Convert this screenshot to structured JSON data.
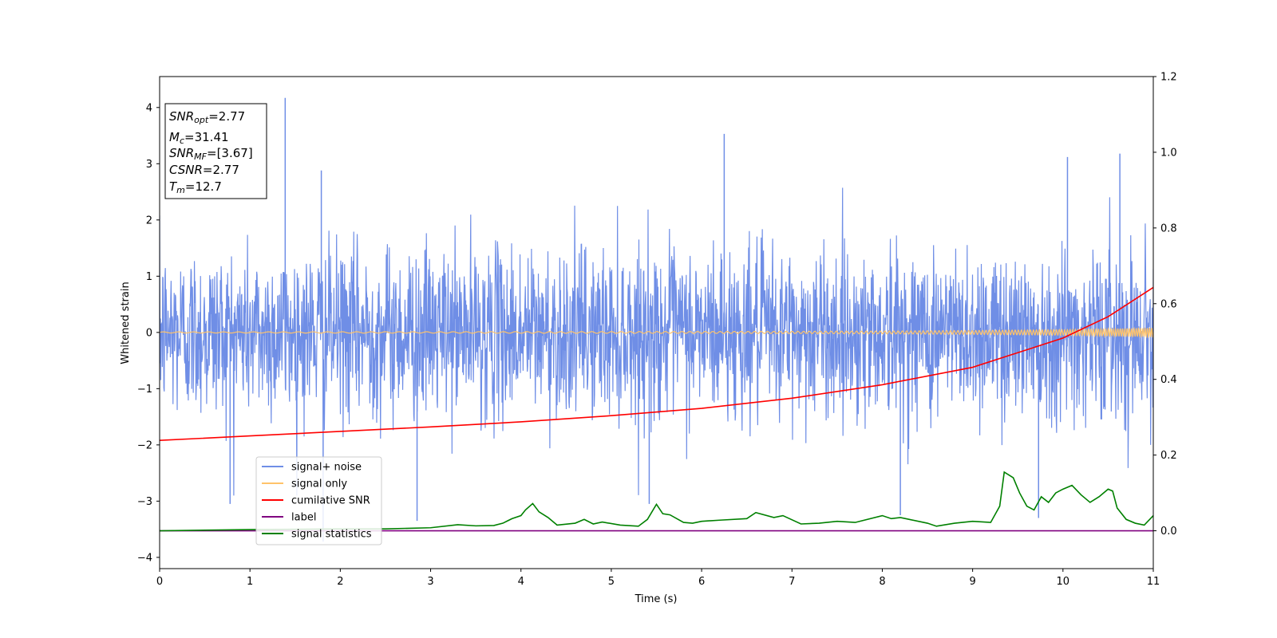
{
  "chart_data": {
    "type": "line",
    "xlabel": "Time (s)",
    "ylabel": "Whitened strain",
    "xlim": [
      0,
      11
    ],
    "ylim": [
      -4.2,
      4.55
    ],
    "y2lim": [
      -0.1,
      1.2
    ],
    "x_ticks": [
      0,
      1,
      2,
      3,
      4,
      5,
      6,
      7,
      8,
      9,
      10,
      11
    ],
    "y_ticks": [
      -4,
      -3,
      -2,
      -1,
      0,
      1,
      2,
      3,
      4
    ],
    "y_tick_labels": [
      "−4",
      "−3",
      "−2",
      "−1",
      "0",
      "1",
      "2",
      "3",
      "4"
    ],
    "y2_ticks": [
      0.0,
      0.2,
      0.4,
      0.6,
      0.8,
      1.0,
      1.2
    ],
    "y2_tick_labels": [
      "0.0",
      "0.2",
      "0.4",
      "0.6",
      "0.8",
      "1.0",
      "1.2"
    ],
    "legend_position": "lower-left",
    "series": [
      {
        "name": "signal+ noise",
        "axis": "left",
        "color": "#6f8ee6",
        "style": "dense-noise",
        "std": 0.75,
        "peaks": [
          {
            "x": 1.39,
            "y": 4.17
          },
          {
            "x": 6.25,
            "y": 3.53
          },
          {
            "x": 10.63,
            "y": 3.18
          },
          {
            "x": 1.79,
            "y": 2.88
          },
          {
            "x": 10.05,
            "y": 3.12
          },
          {
            "x": 2.85,
            "y": -3.35
          },
          {
            "x": 1.81,
            "y": -3.72
          },
          {
            "x": 9.73,
            "y": -3.3
          },
          {
            "x": 0.78,
            "y": -3.05
          },
          {
            "x": 8.2,
            "y": -3.25
          },
          {
            "x": 5.42,
            "y": -3.05
          }
        ]
      },
      {
        "name": "signal only",
        "axis": "left",
        "color": "#ffc36a",
        "style": "chirp",
        "x": [
          0,
          1,
          2,
          3,
          4,
          5,
          6,
          7,
          8,
          9,
          10,
          11
        ],
        "amplitude": [
          0.01,
          0.01,
          0.012,
          0.012,
          0.014,
          0.015,
          0.017,
          0.02,
          0.025,
          0.035,
          0.05,
          0.08
        ]
      },
      {
        "name": "cumilative SNR",
        "axis": "left",
        "color": "#ff0000",
        "x": [
          0,
          1,
          2,
          3,
          4,
          5,
          6,
          7,
          8,
          9,
          10,
          10.5,
          11
        ],
        "y": [
          -1.92,
          -1.84,
          -1.76,
          -1.68,
          -1.59,
          -1.48,
          -1.35,
          -1.17,
          -0.93,
          -0.62,
          -0.1,
          0.28,
          0.8
        ]
      },
      {
        "name": "label",
        "axis": "right",
        "color": "#800080",
        "x": [
          0,
          11
        ],
        "y": [
          0,
          0
        ]
      },
      {
        "name": "signal statistics",
        "axis": "right",
        "color": "#008000",
        "x": [
          0,
          1,
          2,
          2.5,
          3,
          3.3,
          3.5,
          3.7,
          3.8,
          3.9,
          4.0,
          4.05,
          4.13,
          4.2,
          4.3,
          4.4,
          4.6,
          4.7,
          4.8,
          4.9,
          5.1,
          5.3,
          5.4,
          5.5,
          5.57,
          5.65,
          5.8,
          5.9,
          6.0,
          6.2,
          6.5,
          6.6,
          6.8,
          6.9,
          7.1,
          7.3,
          7.5,
          7.7,
          8.0,
          8.1,
          8.2,
          8.3,
          8.5,
          8.6,
          8.8,
          9.0,
          9.2,
          9.3,
          9.35,
          9.45,
          9.52,
          9.6,
          9.68,
          9.76,
          9.84,
          9.92,
          10.0,
          10.1,
          10.2,
          10.3,
          10.4,
          10.5,
          10.55,
          10.6,
          10.7,
          10.8,
          10.9,
          11.0
        ],
        "y": [
          0.0,
          0.003,
          0.005,
          0.005,
          0.008,
          0.016,
          0.013,
          0.014,
          0.02,
          0.032,
          0.04,
          0.055,
          0.072,
          0.05,
          0.035,
          0.015,
          0.02,
          0.03,
          0.018,
          0.023,
          0.015,
          0.012,
          0.03,
          0.07,
          0.045,
          0.042,
          0.022,
          0.02,
          0.025,
          0.028,
          0.032,
          0.048,
          0.035,
          0.04,
          0.018,
          0.02,
          0.025,
          0.022,
          0.04,
          0.032,
          0.035,
          0.03,
          0.02,
          0.012,
          0.02,
          0.025,
          0.022,
          0.065,
          0.155,
          0.14,
          0.1,
          0.065,
          0.055,
          0.09,
          0.075,
          0.1,
          0.11,
          0.12,
          0.095,
          0.075,
          0.09,
          0.11,
          0.105,
          0.06,
          0.03,
          0.02,
          0.015,
          0.04
        ]
      }
    ]
  },
  "annotation": {
    "lines": [
      {
        "main": "SNR",
        "sub": "opt",
        "rest": "=2.77"
      },
      {
        "main": "M",
        "sub": "c",
        "rest": "=31.41"
      },
      {
        "main": "SNR",
        "sub": "MF",
        "rest": "=[3.67]"
      },
      {
        "main": "CSNR",
        "sub": "",
        "rest": "=2.77"
      },
      {
        "main": "T",
        "sub": "m",
        "rest": "=12.7"
      }
    ]
  }
}
